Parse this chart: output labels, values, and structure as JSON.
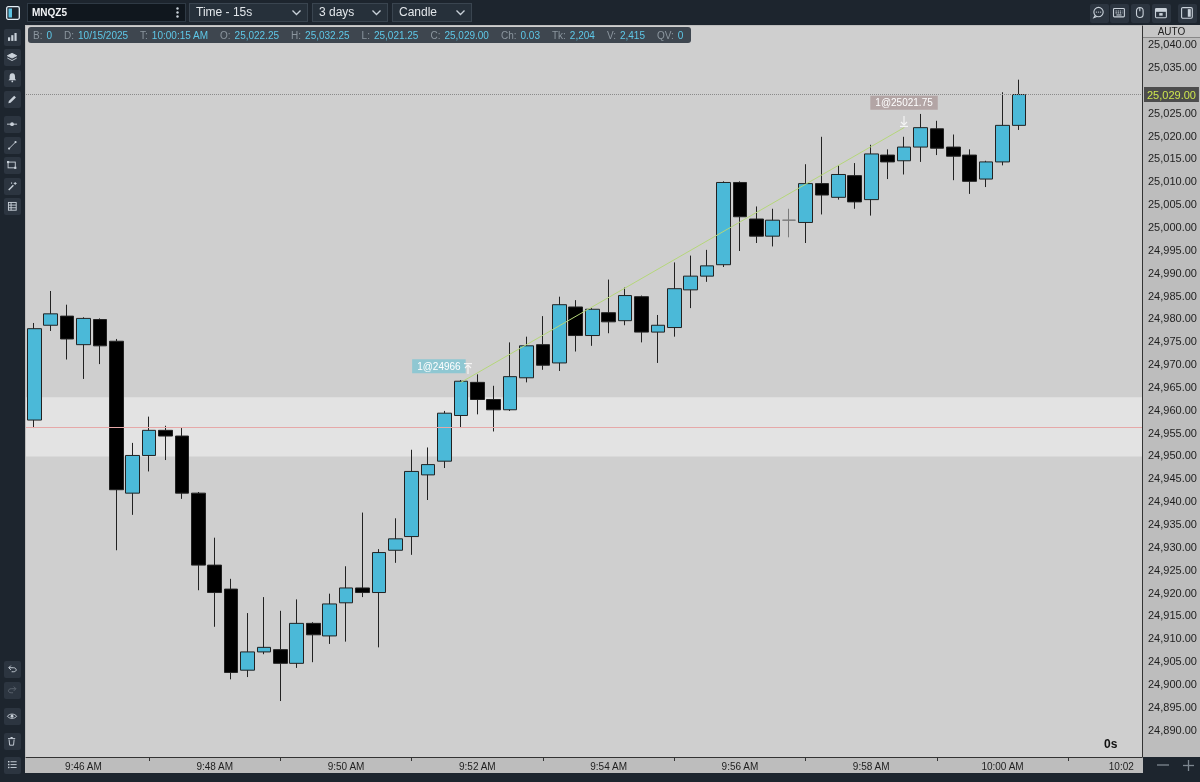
{
  "chart_data": {
    "type": "candlestick",
    "title": "MNQZ5",
    "categories": [
      null,
      null,
      null,
      "9:46 AM",
      null,
      null,
      null,
      null,
      null,
      null,
      null,
      "9:48 AM",
      null,
      null,
      null,
      null,
      null,
      null,
      null,
      "9:50 AM",
      null,
      null,
      null,
      null,
      null,
      null,
      null,
      "9:52 AM",
      null,
      null,
      null,
      null,
      null,
      null,
      null,
      "9:54 AM",
      null,
      null,
      null,
      null,
      null,
      null,
      null,
      "9:56 AM",
      null,
      null,
      null,
      null,
      null,
      null,
      null,
      "9:58 AM",
      null,
      null,
      null,
      null,
      null,
      null,
      null,
      "10:00 AM",
      null,
      null,
      null,
      null,
      null,
      null,
      null,
      "10:02"
    ],
    "ohlc": [
      [
        24957.75,
        24979,
        24956,
        24977.75
      ],
      [
        24978.5,
        24986,
        24977.25,
        24981
      ],
      [
        24980.5,
        24983,
        24971,
        24975.5
      ],
      [
        24974.25,
        24980.25,
        24966.75,
        24980
      ],
      [
        24979.75,
        24980,
        24970,
        24974
      ],
      [
        24975,
        24975.5,
        24929.25,
        24942.5
      ],
      [
        24941.75,
        24952.75,
        24937,
        24950
      ],
      [
        24950,
        24958.5,
        24946.5,
        24955.5
      ],
      [
        24955.5,
        24956.5,
        24949,
        24954.25
      ],
      [
        24954.25,
        24956,
        24940.5,
        24941.75
      ],
      [
        24941.75,
        24942,
        24920.5,
        24926
      ],
      [
        24926,
        24932,
        24912.5,
        24920
      ],
      [
        24920.75,
        24923,
        24901,
        24902.5
      ],
      [
        24903,
        24915.5,
        24901.5,
        24907
      ],
      [
        24907,
        24919,
        24906.5,
        24908
      ],
      [
        24907.5,
        24916,
        24896.25,
        24904.5
      ],
      [
        24904.5,
        24918.5,
        24903.5,
        24913.25
      ],
      [
        24913.25,
        24913.5,
        24904.75,
        24910.75
      ],
      [
        24910.5,
        24919.75,
        24908.75,
        24917.5
      ],
      [
        24917.75,
        24925.75,
        24909.25,
        24921
      ],
      [
        24921,
        24937.5,
        24919,
        24920
      ],
      [
        24920,
        24929.5,
        24908,
        24928.75
      ],
      [
        24929.25,
        24936.25,
        24926.5,
        24931.75
      ],
      [
        24932.25,
        24951.25,
        24928.25,
        24946.5
      ],
      [
        24945.75,
        24951.75,
        24940.25,
        24948
      ],
      [
        24948.75,
        24959.75,
        24947.25,
        24959.25
      ],
      [
        24958.75,
        24966.5,
        24956,
        24966.25
      ],
      [
        24966,
        24967.75,
        24959,
        24962.25
      ],
      [
        24962.25,
        24965.25,
        24955.25,
        24960
      ],
      [
        24960,
        24974.75,
        24959.75,
        24967.25
      ],
      [
        24967,
        24976,
        24966,
        24974
      ],
      [
        24974.25,
        24980.5,
        24968.75,
        24969.75
      ],
      [
        24970.25,
        24984.75,
        24968.5,
        24983
      ],
      [
        24982.5,
        24984,
        24972.75,
        24976.25
      ],
      [
        24976.25,
        24982.25,
        24974,
        24982
      ],
      [
        24981.25,
        24988.5,
        24976.75,
        24979.25
      ],
      [
        24979.5,
        24986.75,
        24978.5,
        24985
      ],
      [
        24984.75,
        24985,
        24974.75,
        24977
      ],
      [
        24977,
        24980.75,
        24970.25,
        24978.5
      ],
      [
        24978,
        24992.25,
        24976,
        24986.5
      ],
      [
        24986.25,
        24993.75,
        24982.25,
        24989.25
      ],
      [
        24989.25,
        24995,
        24988,
        24991.5
      ],
      [
        24991.75,
        25010,
        24991.25,
        25009.75
      ],
      [
        25009.75,
        25010,
        24994.75,
        25002.25
      ],
      [
        25001.75,
        25004.5,
        24996.5,
        24998
      ],
      [
        24998,
        25004,
        24995.75,
        25001.5
      ],
      [
        25001.5,
        25004,
        24997.75,
        25001.5
      ],
      [
        25001,
        25013.75,
        24996.5,
        25009.5
      ],
      [
        25009.5,
        25019.75,
        25002.75,
        25007
      ],
      [
        25006.5,
        25013.5,
        25006,
        25011.5
      ],
      [
        25011.25,
        25014,
        25004,
        25005.5
      ],
      [
        25006,
        25018,
        25002.5,
        25016
      ],
      [
        25015.75,
        25017,
        25010.5,
        25014.25
      ],
      [
        25014.5,
        25019.75,
        25011.5,
        25017.5
      ],
      [
        25017.5,
        25024.75,
        25014.25,
        25021.75
      ],
      [
        25021.5,
        25023.25,
        25015.75,
        25017.25
      ],
      [
        25017.5,
        25020.25,
        25010.25,
        25015.5
      ],
      [
        25015.75,
        25017,
        25007.25,
        25010
      ],
      [
        25010.5,
        25014.5,
        25008.75,
        25014.25
      ],
      [
        25014.25,
        25029.5,
        25013.5,
        25022.25
      ],
      [
        25022.25,
        25032.25,
        25021.25,
        25029
      ],
      null,
      null,
      null,
      null,
      null,
      null,
      null
    ],
    "colors": [
      "#4bb9d8",
      "#4bb9d8",
      "#000000",
      "#4bb9d8",
      "#000000",
      "#000000",
      "#4bb9d8",
      "#4bb9d8",
      "#000000",
      "#000000",
      "#000000",
      "#000000",
      "#000000",
      "#4bb9d8",
      "#4bb9d8",
      "#000000",
      "#4bb9d8",
      "#000000",
      "#4bb9d8",
      "#4bb9d8",
      "#000000",
      "#4bb9d8",
      "#4bb9d8",
      "#4bb9d8",
      "#4bb9d8",
      "#4bb9d8",
      "#4bb9d8",
      "#000000",
      "#000000",
      "#4bb9d8",
      "#4bb9d8",
      "#000000",
      "#4bb9d8",
      "#000000",
      "#4bb9d8",
      "#000000",
      "#4bb9d8",
      "#000000",
      "#4bb9d8",
      "#4bb9d8",
      "#4bb9d8",
      "#4bb9d8",
      "#4bb9d8",
      "#000000",
      "#000000",
      "#4bb9d8",
      "#7a7a7a",
      "#4bb9d8",
      "#000000",
      "#4bb9d8",
      "#000000",
      "#4bb9d8",
      "#000000",
      "#4bb9d8",
      "#4bb9d8",
      "#000000",
      "#000000",
      "#000000",
      "#4bb9d8",
      "#4bb9d8",
      "#4bb9d8",
      null,
      null,
      null,
      null,
      null,
      null,
      null
    ],
    "series": [
      {
        "type": "line",
        "color": "#b5d67a",
        "values": [
          null,
          null,
          null,
          null,
          null,
          null,
          null,
          null,
          null,
          null,
          null,
          null,
          null,
          null,
          null,
          null,
          null,
          null,
          null,
          null,
          null,
          null,
          null,
          null,
          null,
          null,
          24966,
          null,
          null,
          null,
          null,
          null,
          null,
          null,
          null,
          null,
          null,
          null,
          null,
          null,
          null,
          null,
          null,
          null,
          null,
          null,
          null,
          null,
          null,
          null,
          null,
          null,
          null,
          25021.75,
          null,
          null,
          null,
          null,
          null,
          null,
          null,
          null,
          null,
          null,
          null,
          null,
          null,
          null
        ],
        "value_labels": [
          null,
          null,
          null,
          null,
          null,
          null,
          null,
          null,
          null,
          null,
          null,
          null,
          null,
          null,
          null,
          null,
          null,
          null,
          null,
          null,
          null,
          null,
          null,
          null,
          null,
          null,
          "1@24966",
          null,
          null,
          null,
          null,
          null,
          null,
          null,
          null,
          null,
          null,
          null,
          null,
          null,
          null,
          null,
          null,
          null,
          null,
          null,
          null,
          null,
          null,
          null,
          null,
          null,
          null,
          "1@25021.75",
          null,
          null,
          null,
          null,
          null,
          null,
          null,
          null,
          null,
          null,
          null,
          null,
          null,
          null
        ]
      }
    ],
    "ylim": [
      24884,
      25044
    ],
    "yticks": [
      {
        "value": 24890,
        "label": "24,890.00"
      },
      {
        "value": 24895,
        "label": "24,895.00"
      },
      {
        "value": 24900,
        "label": "24,900.00"
      },
      {
        "value": 24905,
        "label": "24,905.00"
      },
      {
        "value": 24910,
        "label": "24,910.00"
      },
      {
        "value": 24915,
        "label": "24,915.00"
      },
      {
        "value": 24920,
        "label": "24,920.00"
      },
      {
        "value": 24925,
        "label": "24,925.00"
      },
      {
        "value": 24930,
        "label": "24,930.00"
      },
      {
        "value": 24935,
        "label": "24,935.00"
      },
      {
        "value": 24940,
        "label": "24,940.00"
      },
      {
        "value": 24945,
        "label": "24,945.00"
      },
      {
        "value": 24950,
        "label": "24,950.00"
      },
      {
        "value": 24955,
        "label": "24,955.00"
      },
      {
        "value": 24960,
        "label": "24,960.00"
      },
      {
        "value": 24965,
        "label": "24,965.00"
      },
      {
        "value": 24970,
        "label": "24,970.00"
      },
      {
        "value": 24975,
        "label": "24,975.00"
      },
      {
        "value": 24980,
        "label": "24,980.00"
      },
      {
        "value": 24985,
        "label": "24,985.00"
      },
      {
        "value": 24990,
        "label": "24,990.00"
      },
      {
        "value": 24995,
        "label": "24,995.00"
      },
      {
        "value": 25000,
        "label": "25,000.00"
      },
      {
        "value": 25005,
        "label": "25,005.00"
      },
      {
        "value": 25010,
        "label": "25,010.00"
      },
      {
        "value": 25015,
        "label": "25,015.00"
      },
      {
        "value": 25020,
        "label": "25,020.00"
      },
      {
        "value": 25025,
        "label": "25,025.00"
      },
      {
        "value": 25035,
        "label": "25,035.00"
      },
      {
        "value": 25040,
        "label": "25,040.00"
      }
    ],
    "ref_lines": [
      {
        "axis": "y",
        "value": 25029,
        "label": "25,029.00",
        "color": "#8a8a8a",
        "line_style": "dotted"
      },
      {
        "axis": "y",
        "value": 24956.25,
        "color": "#e6a8a8"
      }
    ],
    "bands": [
      {
        "axis": "y",
        "from": 24949.75,
        "to": 24962.75,
        "color": "#e3e3e3"
      }
    ],
    "annotations": [
      "Time - 15s",
      "3 days",
      "Candle",
      "B: 0",
      "D: 10/15/2025",
      "T: 10:00:15 AM",
      "O: 25,022.25",
      "H: 25,032.25",
      "L: 25,021.25",
      "C: 25,029.00",
      "Ch: 0.03",
      "Tk: 2,204",
      "V: 2,415",
      "QV: 0",
      "AUTO",
      "0s"
    ]
  }
}
